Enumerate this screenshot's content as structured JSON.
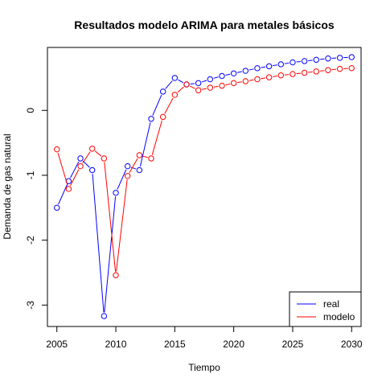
{
  "chart_data": {
    "type": "line",
    "title": "Resultados modelo ARIMA para metales básicos",
    "xlabel": "Tiempo",
    "ylabel": "Demanda de gas natural",
    "xlim": [
      2004.2,
      2030.8
    ],
    "ylim": [
      -3.33,
      0.97
    ],
    "x_ticks": [
      2005,
      2010,
      2015,
      2020,
      2025,
      2030
    ],
    "y_ticks": [
      -3,
      -2,
      -1,
      0
    ],
    "x_tick_labels": [
      "2005",
      "2010",
      "2015",
      "2020",
      "2025",
      "2030"
    ],
    "y_tick_labels": [
      "-3",
      "-2",
      "-1",
      "0"
    ],
    "legend_position": "bottom-right",
    "grid": false,
    "x": [
      2005,
      2006,
      2007,
      2008,
      2009,
      2010,
      2011,
      2012,
      2013,
      2014,
      2015,
      2016,
      2017,
      2018,
      2019,
      2020,
      2021,
      2022,
      2023,
      2024,
      2025,
      2026,
      2027,
      2028,
      2029,
      2030
    ],
    "series": [
      {
        "name": "real",
        "color": "#0000ff",
        "values": [
          -1.5,
          -1.09,
          -0.74,
          -0.92,
          -3.17,
          -1.27,
          -0.86,
          -0.92,
          -0.13,
          0.29,
          0.5,
          0.4,
          0.42,
          0.48,
          0.53,
          0.57,
          0.61,
          0.65,
          0.68,
          0.71,
          0.74,
          0.76,
          0.78,
          0.8,
          0.81,
          0.82
        ]
      },
      {
        "name": "modelo",
        "color": "#ff0000",
        "values": [
          -0.6,
          -1.21,
          -0.86,
          -0.59,
          -0.74,
          -2.54,
          -1.01,
          -0.69,
          -0.74,
          -0.1,
          0.24,
          0.4,
          0.31,
          0.35,
          0.38,
          0.42,
          0.45,
          0.48,
          0.51,
          0.54,
          0.56,
          0.58,
          0.6,
          0.62,
          0.64,
          0.65
        ]
      }
    ]
  }
}
